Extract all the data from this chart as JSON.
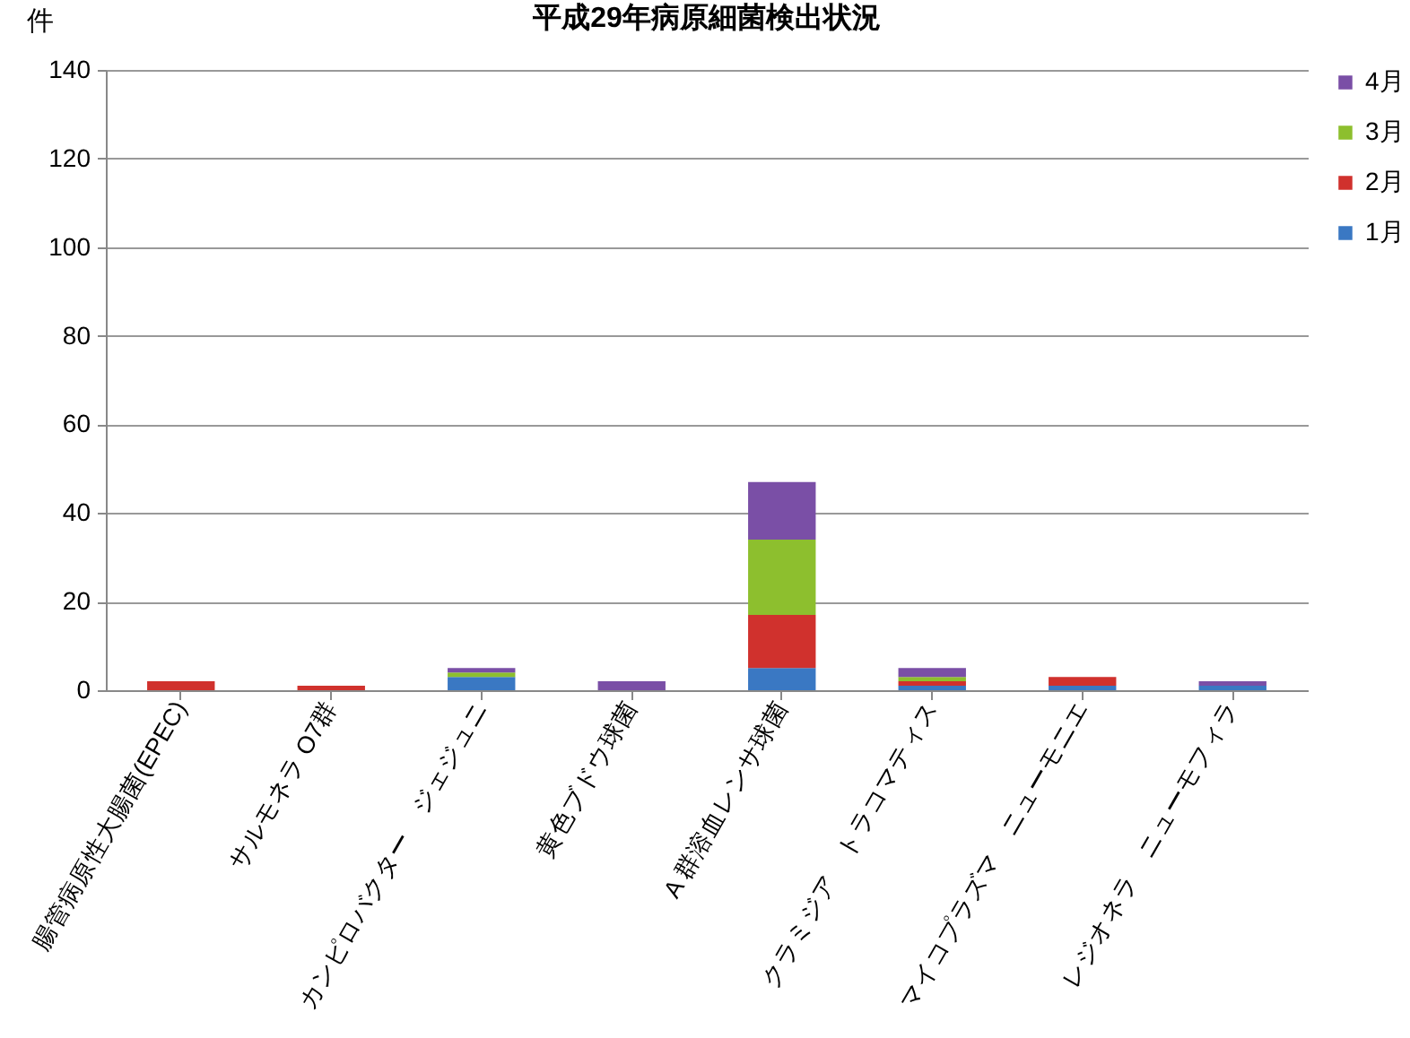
{
  "chart_data": {
    "type": "bar",
    "title": "平成29年病原細菌検出状況",
    "ylabel": "件",
    "categories": [
      "腸管病原性大腸菌(EPEC)",
      "サルモネラ O7群",
      "カンピロバクター　ジェジュニ",
      "黄色ブドウ球菌",
      "A 群溶血レンサ球菌",
      "クラミジア　トラコマティス",
      "マイコプラズマ　ニューモニエ",
      "レジオネラ　ニューモフィラ"
    ],
    "series": [
      {
        "name": "1月",
        "color": "#3a78c3",
        "values": [
          0,
          0,
          3,
          0,
          5,
          1,
          1,
          1
        ]
      },
      {
        "name": "2月",
        "color": "#d0312d",
        "values": [
          2,
          1,
          0,
          0,
          12,
          1,
          2,
          0
        ]
      },
      {
        "name": "3月",
        "color": "#8dbf2e",
        "values": [
          0,
          0,
          1,
          0,
          17,
          1,
          0,
          0
        ]
      },
      {
        "name": "4月",
        "color": "#7a4fa6",
        "values": [
          0,
          0,
          1,
          2,
          13,
          2,
          0,
          1
        ]
      }
    ],
    "stacked": true,
    "ylim": [
      0,
      140
    ],
    "yticks": [
      0,
      20,
      40,
      60,
      80,
      100,
      120,
      140
    ],
    "grid": "y",
    "legend": "top right"
  }
}
